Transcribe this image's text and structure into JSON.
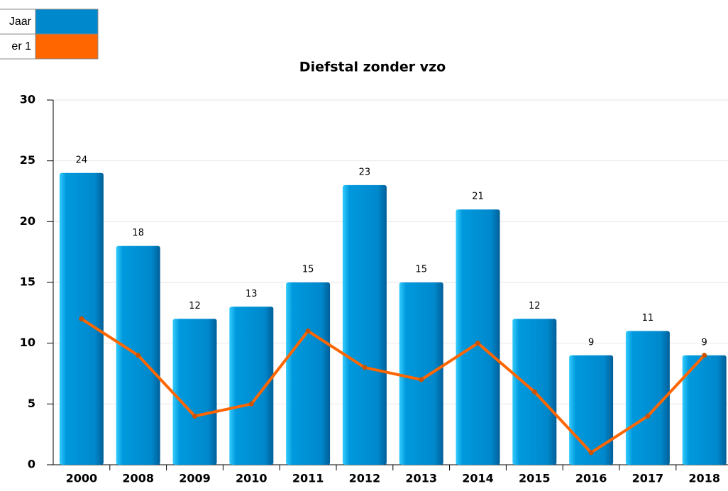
{
  "chart_data": {
    "type": "bar",
    "title": "Diefstal zonder vzo",
    "categories": [
      "2000",
      "2008",
      "2009",
      "2010",
      "2011",
      "2012",
      "2013",
      "2014",
      "2015",
      "2016",
      "2017",
      "2018"
    ],
    "series": [
      {
        "name": "Jaar",
        "type": "bar",
        "color": "#0088cc",
        "values": [
          24,
          18,
          12,
          13,
          15,
          23,
          15,
          21,
          12,
          9,
          11,
          9
        ]
      },
      {
        "name": "er 1",
        "type": "line",
        "color": "#ff6600",
        "values": [
          12,
          9,
          4,
          5,
          11,
          8,
          7,
          10,
          6,
          1,
          4,
          9
        ]
      }
    ],
    "ylim": [
      0,
      30
    ],
    "yticks": [
      0,
      5,
      10,
      15,
      20,
      25,
      30
    ],
    "grid": true,
    "legend": "top-left"
  }
}
